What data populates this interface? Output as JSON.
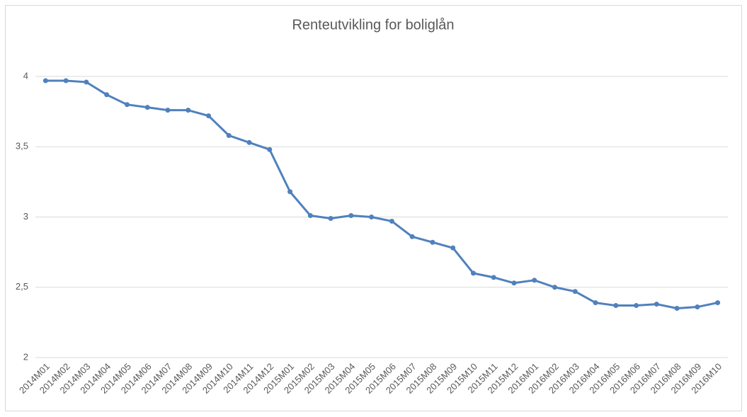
{
  "chart_data": {
    "type": "line",
    "title": "Renteutvikling for boliglån",
    "categories": [
      "2014M01",
      "2014M02",
      "2014M03",
      "2014M04",
      "2014M05",
      "2014M06",
      "2014M07",
      "2014M08",
      "2014M09",
      "2014M10",
      "2014M11",
      "2014M12",
      "2015M01",
      "2015M02",
      "2015M03",
      "2015M04",
      "2015M05",
      "2015M06",
      "2015M07",
      "2015M08",
      "2015M09",
      "2015M10",
      "2015M11",
      "2015M12",
      "2016M01",
      "2016M02",
      "2016M03",
      "2016M04",
      "2016M05",
      "2016M06",
      "2016M07",
      "2016M08",
      "2016M09",
      "2016M10"
    ],
    "values": [
      3.97,
      3.97,
      3.96,
      3.87,
      3.8,
      3.78,
      3.76,
      3.76,
      3.72,
      3.58,
      3.53,
      3.48,
      3.18,
      3.01,
      2.99,
      3.01,
      3.0,
      2.97,
      2.86,
      2.82,
      2.78,
      2.6,
      2.57,
      2.53,
      2.55,
      2.5,
      2.47,
      2.39,
      2.37,
      2.37,
      2.38,
      2.35,
      2.36,
      2.39
    ],
    "color": "#4f81bd",
    "ylim": [
      2,
      4
    ],
    "yticks": [
      2,
      {
        "value": 2.5,
        "label": "2,5"
      },
      3,
      {
        "value": 3.5,
        "label": "3,5"
      },
      4
    ],
    "grid": true
  }
}
